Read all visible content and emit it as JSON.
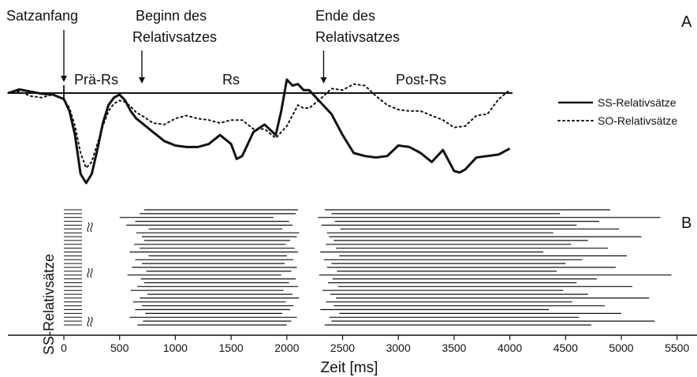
{
  "chart_data": {
    "type": "line",
    "panel_labels": [
      "A",
      "B"
    ],
    "xlabel": "Zeit [ms]",
    "xlim": [
      -500,
      5500
    ],
    "xticks": [
      0,
      500,
      1000,
      1500,
      2000,
      2500,
      3000,
      3500,
      4000,
      4500,
      5000,
      5500
    ],
    "annotations": {
      "satzanfang": {
        "label": "Satzanfang",
        "x": 0
      },
      "beginn_line1": "Beginn des",
      "beginn_line2": "Relativsatzes",
      "beginn_x": 700,
      "ende_line1": "Ende des",
      "ende_line2": "Relativsatzes",
      "ende_x": 2330
    },
    "segments": [
      {
        "label": "Prä-Rs",
        "x": 350
      },
      {
        "label": "Rs",
        "x": 1500
      },
      {
        "label": "Post-Rs",
        "x": 3180
      }
    ],
    "series": [
      {
        "name": "SS-Relativsätze",
        "style": "solid",
        "x": [
          -500,
          -400,
          -300,
          -200,
          -100,
          0,
          50,
          100,
          150,
          200,
          250,
          300,
          350,
          400,
          450,
          500,
          550,
          600,
          650,
          700,
          800,
          900,
          1000,
          1100,
          1200,
          1300,
          1400,
          1500,
          1550,
          1600,
          1650,
          1700,
          1800,
          1900,
          1950,
          2000,
          2050,
          2100,
          2150,
          2200,
          2300,
          2400,
          2500,
          2600,
          2700,
          2800,
          2900,
          3000,
          3100,
          3200,
          3300,
          3400,
          3500,
          3550,
          3600,
          3700,
          3800,
          3900,
          4000
        ],
        "values": [
          0.0,
          0.12,
          0.05,
          -0.02,
          -0.05,
          -0.2,
          -0.6,
          -1.4,
          -2.7,
          -3.0,
          -2.7,
          -1.9,
          -1.0,
          -0.4,
          -0.15,
          -0.05,
          -0.25,
          -0.6,
          -0.85,
          -1.0,
          -1.3,
          -1.6,
          -1.75,
          -1.8,
          -1.8,
          -1.7,
          -1.4,
          -1.7,
          -2.2,
          -2.1,
          -1.7,
          -1.3,
          -1.05,
          -1.4,
          -0.6,
          0.45,
          0.25,
          0.3,
          0.1,
          0.1,
          -0.3,
          -0.7,
          -1.4,
          -2.0,
          -2.1,
          -2.15,
          -2.1,
          -1.75,
          -1.8,
          -2.0,
          -2.3,
          -1.9,
          -2.6,
          -2.65,
          -2.55,
          -2.15,
          -2.1,
          -2.05,
          -1.85
        ]
      },
      {
        "name": "SO-Relativsätze",
        "style": "dotted",
        "x": [
          -500,
          -400,
          -300,
          -200,
          -100,
          0,
          50,
          100,
          150,
          200,
          250,
          300,
          350,
          400,
          450,
          500,
          550,
          600,
          650,
          700,
          800,
          900,
          1000,
          1100,
          1200,
          1300,
          1400,
          1500,
          1600,
          1700,
          1800,
          1900,
          2000,
          2100,
          2150,
          2200,
          2300,
          2400,
          2500,
          2600,
          2700,
          2800,
          2900,
          3000,
          3100,
          3200,
          3300,
          3400,
          3500,
          3600,
          3700,
          3800,
          3900,
          4000
        ],
        "values": [
          0.0,
          0.05,
          -0.1,
          -0.15,
          -0.05,
          -0.2,
          -0.5,
          -1.1,
          -2.0,
          -2.5,
          -2.3,
          -1.7,
          -1.1,
          -0.6,
          -0.35,
          -0.25,
          -0.3,
          -0.45,
          -0.65,
          -0.75,
          -1.0,
          -1.05,
          -0.85,
          -0.75,
          -0.85,
          -0.9,
          -1.0,
          -0.9,
          -0.9,
          -1.2,
          -1.2,
          -1.5,
          -1.1,
          -0.4,
          -0.5,
          -0.5,
          -0.2,
          0.15,
          0.1,
          0.3,
          0.25,
          -0.1,
          -0.4,
          -0.55,
          -0.6,
          -0.6,
          -0.75,
          -0.9,
          -1.15,
          -1.1,
          -0.75,
          -0.7,
          -0.2,
          0.1
        ]
      }
    ],
    "raster": {
      "ylabel": "SS-Relativsätze",
      "trial_ranges": [
        [
          720,
          2100,
          2340,
          4900
        ],
        [
          680,
          2080,
          2400,
          4450
        ],
        [
          500,
          1880,
          2280,
          5350
        ],
        [
          640,
          2020,
          2430,
          4800
        ],
        [
          560,
          2050,
          2310,
          4600
        ],
        [
          760,
          1960,
          2480,
          4980
        ],
        [
          650,
          2110,
          2360,
          4390
        ],
        [
          700,
          2090,
          2380,
          5180
        ],
        [
          720,
          2030,
          2420,
          4700
        ],
        [
          630,
          1990,
          2350,
          4550
        ],
        [
          680,
          2070,
          2440,
          4880
        ],
        [
          590,
          2100,
          2300,
          4300
        ],
        [
          760,
          2000,
          2470,
          5050
        ],
        [
          640,
          2060,
          2330,
          4650
        ],
        [
          700,
          1980,
          2400,
          4500
        ],
        [
          610,
          2090,
          2360,
          4950
        ],
        [
          740,
          2040,
          2450,
          4420
        ],
        [
          570,
          1950,
          2290,
          5450
        ],
        [
          690,
          2080,
          2410,
          4780
        ],
        [
          720,
          2020,
          2370,
          4600
        ],
        [
          660,
          2100,
          2460,
          5100
        ],
        [
          600,
          1970,
          2320,
          4480
        ],
        [
          750,
          2050,
          2390,
          4700
        ],
        [
          680,
          2110,
          2440,
          5250
        ],
        [
          620,
          1990,
          2350,
          4560
        ],
        [
          700,
          2060,
          2420,
          4850
        ],
        [
          640,
          2030,
          2300,
          4350
        ],
        [
          730,
          1960,
          2470,
          5000
        ],
        [
          590,
          2090,
          2380,
          4620
        ],
        [
          710,
          2040,
          2400,
          5300
        ],
        [
          660,
          2000,
          2340,
          4730
        ]
      ]
    }
  }
}
